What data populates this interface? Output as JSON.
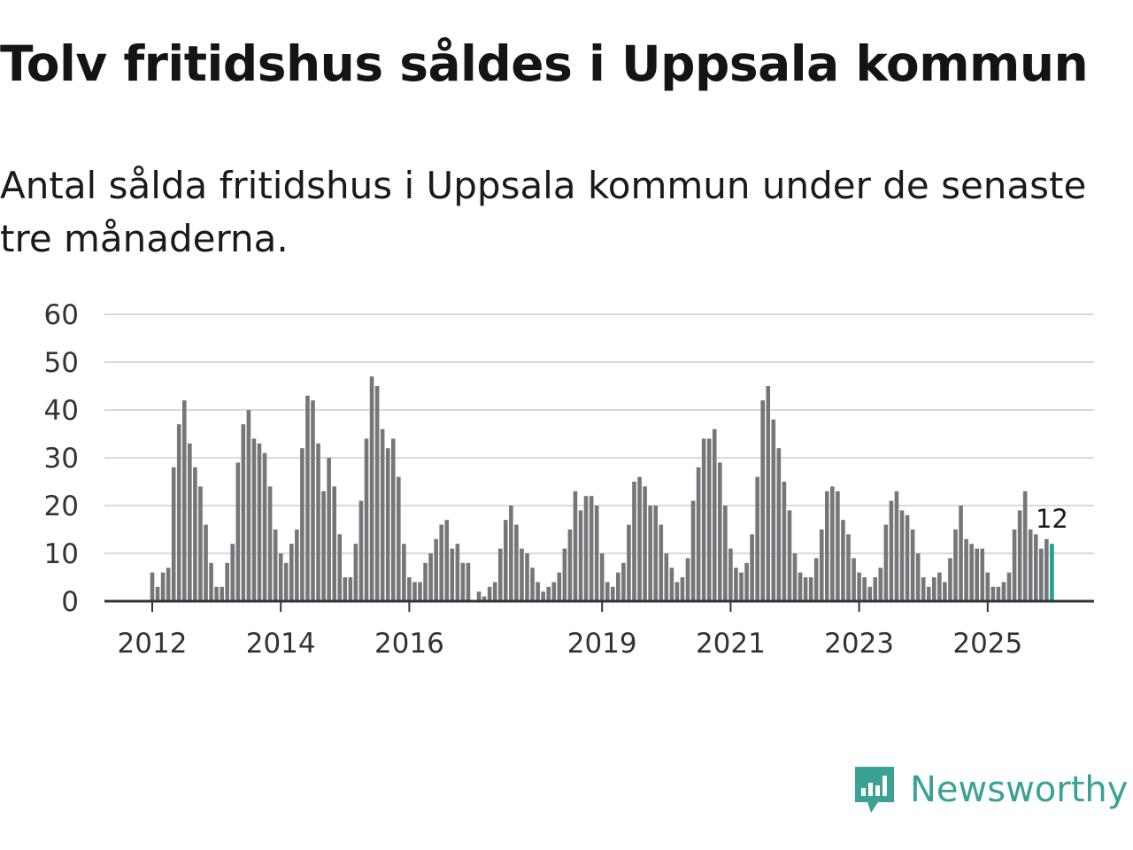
{
  "title": "Tolv fritidshus såldes i Uppsala kommun",
  "subtitle": "Antal sålda fritidshus i Uppsala kommun under de senaste tre månaderna.",
  "brand": {
    "name": "Newsworthy",
    "color": "#3aa294"
  },
  "chart_data": {
    "type": "bar",
    "title": "Tolv fritidshus såldes i Uppsala kommun",
    "xlabel": "",
    "ylabel": "",
    "ylim": [
      0,
      60
    ],
    "yticks": [
      0,
      10,
      20,
      30,
      40,
      50,
      60
    ],
    "xtick_labels": [
      "2012",
      "2014",
      "2016",
      "2019",
      "2021",
      "2023",
      "2025"
    ],
    "xtick_positions": [
      0,
      24,
      48,
      84,
      108,
      132,
      156
    ],
    "bar_color": "#767579",
    "highlight_color": "#1aa192",
    "highlight_label": "12",
    "grid": true,
    "note": "Monthly bars from Jan 2012; index 0 = Jan 2012. Last bar highlighted.",
    "values": [
      6,
      3,
      6,
      7,
      28,
      37,
      42,
      33,
      28,
      24,
      16,
      8,
      3,
      3,
      8,
      12,
      29,
      37,
      40,
      34,
      33,
      31,
      24,
      15,
      10,
      8,
      12,
      15,
      32,
      43,
      42,
      33,
      23,
      30,
      24,
      14,
      5,
      5,
      12,
      21,
      34,
      47,
      45,
      36,
      32,
      34,
      26,
      12,
      5,
      4,
      4,
      8,
      10,
      13,
      16,
      17,
      11,
      12,
      8,
      8,
      0,
      2,
      1,
      3,
      4,
      11,
      17,
      20,
      16,
      11,
      10,
      7,
      4,
      2,
      3,
      4,
      6,
      11,
      15,
      23,
      19,
      22,
      22,
      20,
      10,
      4,
      3,
      6,
      8,
      16,
      25,
      26,
      24,
      20,
      20,
      16,
      10,
      7,
      4,
      5,
      9,
      21,
      28,
      34,
      34,
      36,
      29,
      20,
      11,
      7,
      6,
      8,
      14,
      26,
      42,
      45,
      38,
      32,
      25,
      19,
      10,
      6,
      5,
      5,
      9,
      15,
      23,
      24,
      23,
      17,
      14,
      9,
      6,
      5,
      3,
      5,
      7,
      16,
      21,
      23,
      19,
      18,
      15,
      10,
      5,
      3,
      5,
      6,
      4,
      9,
      15,
      20,
      13,
      12,
      11,
      11,
      6,
      3,
      3,
      4,
      6,
      15,
      19,
      23,
      15,
      14,
      11,
      13,
      12
    ]
  }
}
